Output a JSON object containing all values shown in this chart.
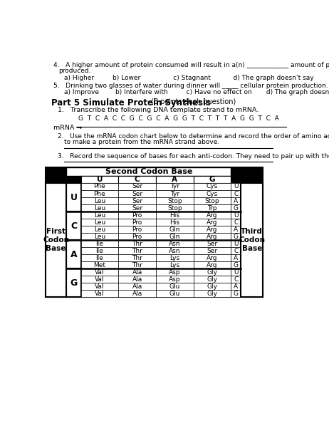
{
  "table_title": "Second Codon Base",
  "col_headers": [
    "U",
    "C",
    "A",
    "G"
  ],
  "row_letters": [
    "U",
    "C",
    "A",
    "G"
  ],
  "table_data": [
    [
      "Phe",
      "Ser",
      "Tyr",
      "Cys",
      "U"
    ],
    [
      "Phe",
      "Ser",
      "Tyr",
      "Cys",
      "C"
    ],
    [
      "Leu",
      "Ser",
      "Stop",
      "Stop",
      "A"
    ],
    [
      "Leu",
      "Ser",
      "Stop",
      "Trp",
      "G"
    ],
    [
      "Leu",
      "Pro",
      "His",
      "Arg",
      "U"
    ],
    [
      "Leu",
      "Pro",
      "His",
      "Arg",
      "C"
    ],
    [
      "Leu",
      "Pro",
      "Gln",
      "Arg",
      "A"
    ],
    [
      "Leu",
      "Pro",
      "Gln",
      "Arg",
      "G"
    ],
    [
      "Ile",
      "Thr",
      "Asn",
      "Ser",
      "U"
    ],
    [
      "Ile",
      "Thr",
      "Asn",
      "Ser",
      "C"
    ],
    [
      "Ile",
      "Thr",
      "Lys",
      "Arg",
      "A"
    ],
    [
      "Met",
      "Thr",
      "Lys",
      "Arg",
      "G"
    ],
    [
      "Val",
      "Ala",
      "Asp",
      "Gly",
      "U"
    ],
    [
      "Val",
      "Ala",
      "Asp",
      "Gly",
      "C"
    ],
    [
      "Val",
      "Ala",
      "Glu",
      "Gly",
      "A"
    ],
    [
      "Val",
      "Ala",
      "Glu",
      "Gly",
      "G"
    ]
  ],
  "first_codon_label": "First\nCodon\nBase",
  "third_codon_label": "Third\nCodon\nBase",
  "bg_color": "#ffffff"
}
